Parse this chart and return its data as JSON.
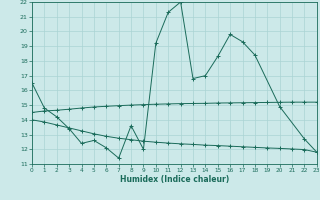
{
  "xlabel": "Humidex (Indice chaleur)",
  "main_x": [
    0,
    1,
    2,
    3,
    4,
    5,
    6,
    7,
    8,
    9,
    10,
    11,
    12,
    13,
    14,
    15,
    16,
    17,
    18,
    20,
    22,
    23
  ],
  "main_y": [
    16.5,
    14.8,
    14.2,
    13.4,
    12.4,
    12.6,
    12.1,
    11.4,
    13.6,
    12.0,
    19.2,
    21.3,
    22.0,
    16.8,
    17.0,
    18.3,
    19.8,
    19.3,
    18.4,
    14.9,
    12.7,
    11.8
  ],
  "upper_x": [
    0,
    1,
    2,
    3,
    4,
    5,
    6,
    7,
    8,
    9,
    10,
    11,
    12,
    13,
    14,
    15,
    16,
    17,
    18,
    19,
    20,
    21,
    22,
    23
  ],
  "upper_y": [
    14.5,
    14.6,
    14.65,
    14.72,
    14.8,
    14.87,
    14.92,
    14.96,
    15.0,
    15.03,
    15.06,
    15.08,
    15.1,
    15.11,
    15.12,
    15.14,
    15.15,
    15.16,
    15.17,
    15.18,
    15.19,
    15.2,
    15.2,
    15.2
  ],
  "lower_x": [
    0,
    1,
    2,
    3,
    4,
    5,
    6,
    7,
    8,
    9,
    10,
    11,
    12,
    13,
    14,
    15,
    16,
    17,
    18,
    19,
    20,
    21,
    22,
    23
  ],
  "lower_y": [
    14.0,
    13.85,
    13.65,
    13.45,
    13.25,
    13.05,
    12.88,
    12.75,
    12.65,
    12.55,
    12.48,
    12.42,
    12.37,
    12.33,
    12.28,
    12.25,
    12.21,
    12.17,
    12.13,
    12.09,
    12.06,
    12.02,
    11.98,
    11.8
  ],
  "ylim": [
    11,
    22
  ],
  "xlim": [
    0,
    23
  ],
  "yticks": [
    11,
    12,
    13,
    14,
    15,
    16,
    17,
    18,
    19,
    20,
    21,
    22
  ],
  "xticks": [
    0,
    1,
    2,
    3,
    4,
    5,
    6,
    7,
    8,
    9,
    10,
    11,
    12,
    13,
    14,
    15,
    16,
    17,
    18,
    19,
    20,
    21,
    22,
    23
  ],
  "line_color": "#1a6b5a",
  "bg_color": "#cce9e9",
  "grid_color": "#aad4d4"
}
